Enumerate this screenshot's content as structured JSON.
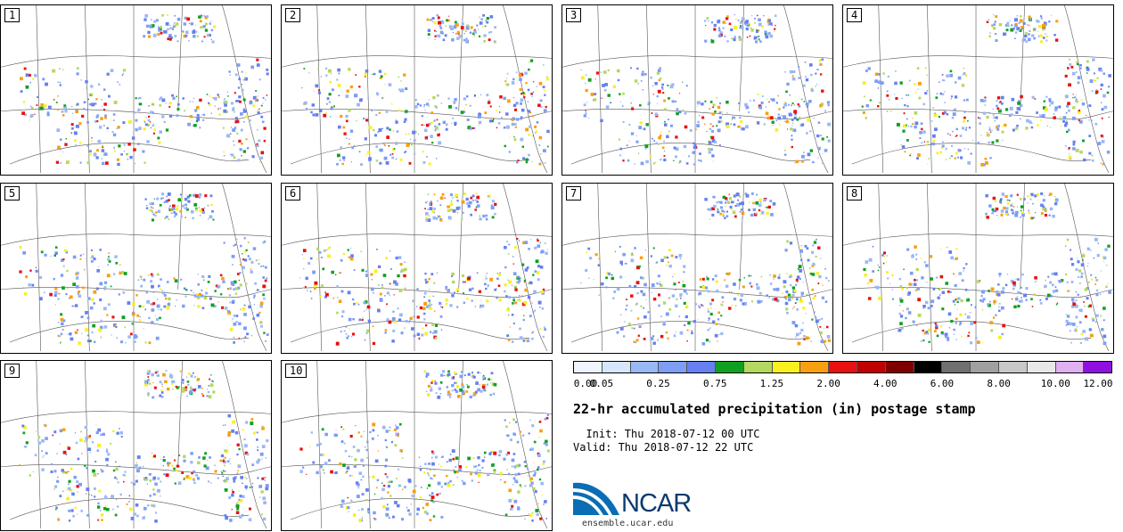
{
  "panels": [
    {
      "label": "1"
    },
    {
      "label": "2"
    },
    {
      "label": "3"
    },
    {
      "label": "4"
    },
    {
      "label": "5"
    },
    {
      "label": "6"
    },
    {
      "label": "7"
    },
    {
      "label": "8"
    },
    {
      "label": "9"
    },
    {
      "label": "10"
    }
  ],
  "colorbar": {
    "colors": [
      "#eef5fc",
      "#d6e6fb",
      "#9ab8f5",
      "#7d9ef3",
      "#6680ef",
      "#10a020",
      "#b4d860",
      "#f8f020",
      "#f8a010",
      "#e81010",
      "#c00000",
      "#800000",
      "#000000",
      "#707070",
      "#a0a0a0",
      "#c8c8c8",
      "#e8e8e8",
      "#e0b0f0",
      "#9010e0"
    ],
    "tick_labels": [
      "0.00",
      "0.05",
      "0.25",
      "0.75",
      "1.25",
      "2.00",
      "4.00",
      "6.00",
      "8.00",
      "10.00",
      "12.00"
    ]
  },
  "title": "22-hr accumulated precipitation (in) postage stamp",
  "init": "  Init: Thu 2018-07-12 00 UTC",
  "valid": "Valid: Thu 2018-07-12 22 UTC",
  "logo_text": "NCAR",
  "url": "ensemble.ucar.edu"
}
